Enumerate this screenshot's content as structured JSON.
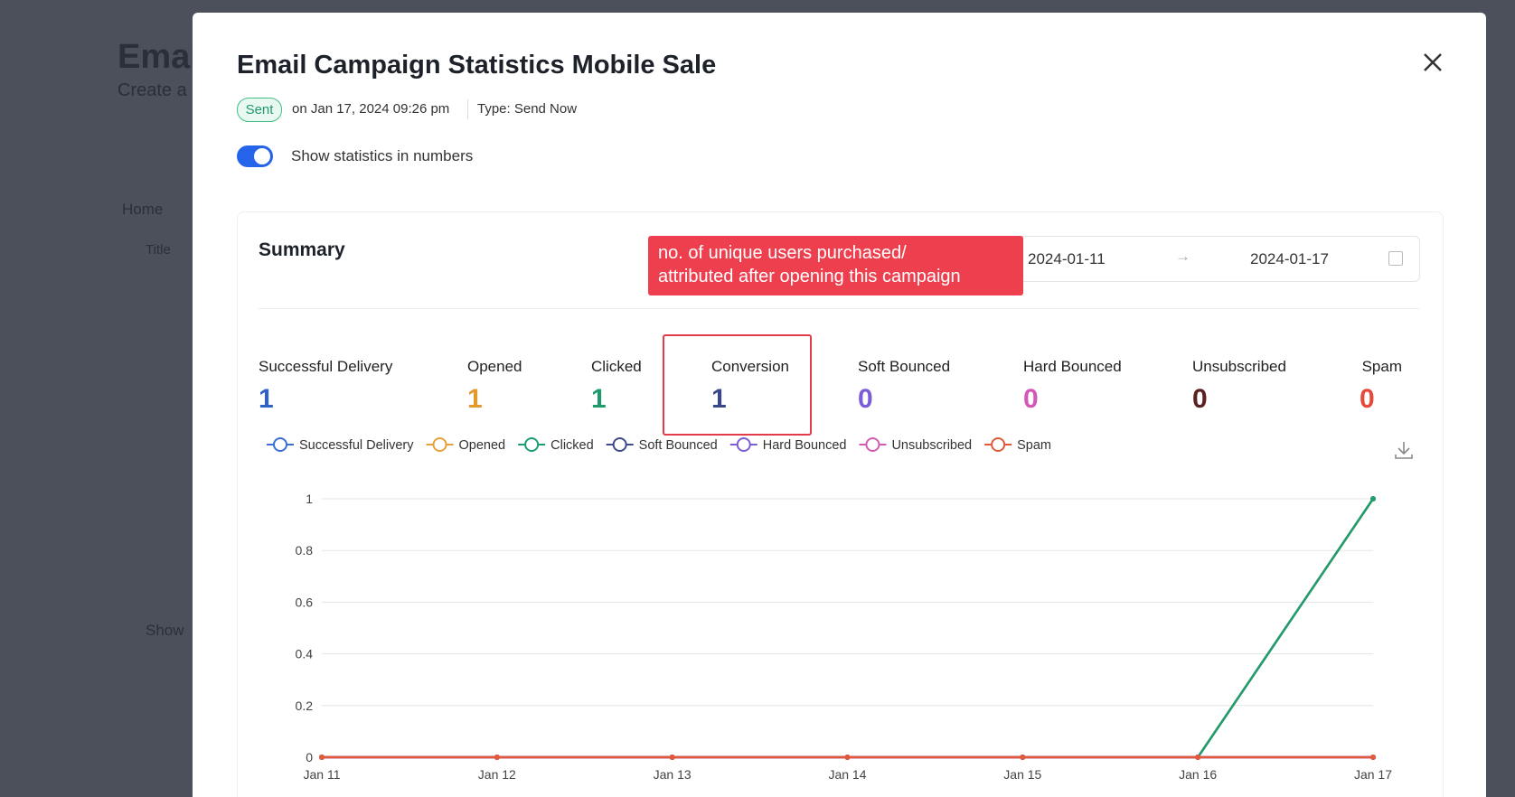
{
  "background": {
    "title": "Emai",
    "subtitle": "Create a",
    "breadcrumb": "Home",
    "column": "Title",
    "footer": "Show"
  },
  "modal": {
    "title": "Email Campaign Statistics Mobile Sale",
    "status": "Sent",
    "sent_on": "on Jan 17, 2024 09:26 pm",
    "type": "Type: Send Now",
    "toggle_label": "Show statistics in numbers"
  },
  "summary": {
    "title": "Summary",
    "date_start": "2024-01-11",
    "date_end": "2024-01-17",
    "tooltip": [
      "no. of unique users purchased/",
      "attributed after opening this campaign"
    ],
    "stats": [
      {
        "label": "Successful Delivery",
        "value": 1,
        "color": "#2f62c9"
      },
      {
        "label": "Opened",
        "value": 1,
        "color": "#e39a2d"
      },
      {
        "label": "Clicked",
        "value": 1,
        "color": "#1f9a6c"
      },
      {
        "label": "Conversion",
        "value": 1,
        "color": "#3a4789"
      },
      {
        "label": "Soft Bounced",
        "value": 0,
        "color": "#7b5bd6"
      },
      {
        "label": "Hard Bounced",
        "value": 0,
        "color": "#d456b6"
      },
      {
        "label": "Unsubscribed",
        "value": 0,
        "color": "#5b2020"
      },
      {
        "label": "Spam",
        "value": 0,
        "color": "#e5493a"
      }
    ]
  },
  "chart_data": {
    "type": "line",
    "categories": [
      "Jan 11",
      "Jan 12",
      "Jan 13",
      "Jan 14",
      "Jan 15",
      "Jan 16",
      "Jan 17"
    ],
    "ylim": [
      0,
      1
    ],
    "yticks": [
      0,
      0.2,
      0.4,
      0.6,
      0.8,
      1
    ],
    "grid": true,
    "series": [
      {
        "name": "Successful Delivery",
        "color": "#3b6fd4",
        "values": [
          0,
          0,
          0,
          0,
          0,
          0,
          1
        ]
      },
      {
        "name": "Opened",
        "color": "#e8a13a",
        "values": [
          0,
          0,
          0,
          0,
          0,
          0,
          1
        ]
      },
      {
        "name": "Clicked",
        "color": "#1f9d6e",
        "values": [
          0,
          0,
          0,
          0,
          0,
          0,
          1
        ]
      },
      {
        "name": "Soft Bounced",
        "color": "#3d4a8c",
        "values": [
          0,
          0,
          0,
          0,
          0,
          0,
          0
        ]
      },
      {
        "name": "Hard Bounced",
        "color": "#7c5cd6",
        "values": [
          0,
          0,
          0,
          0,
          0,
          0,
          0
        ]
      },
      {
        "name": "Unsubscribed",
        "color": "#d45bb5",
        "values": [
          0,
          0,
          0,
          0,
          0,
          0,
          0
        ]
      },
      {
        "name": "Spam",
        "color": "#e05a3a",
        "values": [
          0,
          0,
          0,
          0,
          0,
          0,
          0
        ]
      }
    ]
  }
}
